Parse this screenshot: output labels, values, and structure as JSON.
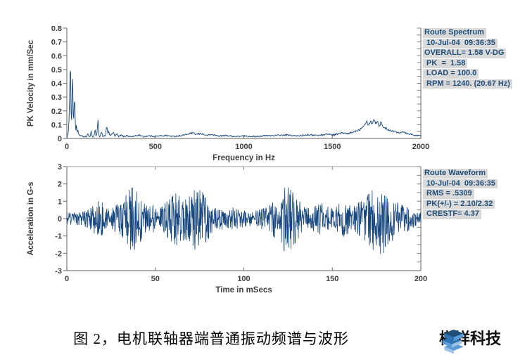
{
  "caption": {
    "text": "图 2，电机联轴器端普通振动频谱与波形"
  },
  "logo": {
    "text": "樽祥科技",
    "icon": "stacked-layers-icon",
    "colors": {
      "dark_blue": "#1f4e79",
      "mid_blue": "#2e75b6",
      "light_blue": "#5b9bd5",
      "pale_blue": "#9dc3e6"
    }
  },
  "colors": {
    "series_line": "#17477e",
    "axis": "#7f7f7f",
    "tick_text": "#3f3f3f",
    "legend_text": "#1f4e79",
    "legend_bg": "#d9d9d9",
    "background": "#ffffff"
  },
  "spectrum_legend": {
    "lines": [
      "Route Spectrum",
      " 10-Jul-04  09:36:35",
      "OVERALL= 1.58 V-DG",
      " PK  =  1.58",
      " LOAD = 100.0",
      " RPM = 1240. (20.67 Hz)"
    ]
  },
  "waveform_legend": {
    "lines": [
      "Route Waveform",
      " 10-Jul-04  09:36:35",
      " RMS = .5309",
      " PK(+/-) = 2.10/2.32",
      " CRESTF= 4.37"
    ]
  },
  "chart_data": [
    {
      "type": "line",
      "title": "Route Spectrum",
      "xlabel": "Frequency in Hz",
      "ylabel": "PK Velocity in mm/Sec",
      "xlim": [
        0,
        2000
      ],
      "ylim": [
        0,
        0.8
      ],
      "xticks": [
        0,
        500,
        1000,
        1500,
        2000
      ],
      "yticks": [
        0,
        0.1,
        0.2,
        0.3,
        0.4,
        0.5,
        0.6,
        0.7,
        0.8
      ],
      "grid": false,
      "legend_position": "outside-top-right",
      "points": [
        [
          0,
          0.01
        ],
        [
          6,
          0.03
        ],
        [
          10,
          0.06
        ],
        [
          14,
          0.22
        ],
        [
          18,
          0.5
        ],
        [
          20,
          0.55
        ],
        [
          22,
          0.38
        ],
        [
          25,
          0.08
        ],
        [
          28,
          0.18
        ],
        [
          31,
          0.46
        ],
        [
          33,
          0.44
        ],
        [
          35,
          0.2
        ],
        [
          38,
          0.1
        ],
        [
          41,
          0.26
        ],
        [
          44,
          0.3
        ],
        [
          47,
          0.14
        ],
        [
          50,
          0.06
        ],
        [
          54,
          0.09
        ],
        [
          58,
          0.04
        ],
        [
          62,
          0.06
        ],
        [
          66,
          0.03
        ],
        [
          72,
          0.025
        ],
        [
          80,
          0.02
        ],
        [
          90,
          0.015
        ],
        [
          100,
          0.012
        ],
        [
          110,
          0.01
        ],
        [
          118,
          0.035
        ],
        [
          124,
          0.012
        ],
        [
          132,
          0.02
        ],
        [
          138,
          0.055
        ],
        [
          142,
          0.015
        ],
        [
          150,
          0.012
        ],
        [
          156,
          0.03
        ],
        [
          160,
          0.08
        ],
        [
          163,
          0.02
        ],
        [
          170,
          0.03
        ],
        [
          176,
          0.145
        ],
        [
          181,
          0.02
        ],
        [
          188,
          0.012
        ],
        [
          196,
          0.05
        ],
        [
          202,
          0.012
        ],
        [
          210,
          0.02
        ],
        [
          218,
          0.015
        ],
        [
          226,
          0.1
        ],
        [
          231,
          0.03
        ],
        [
          237,
          0.06
        ],
        [
          243,
          0.015
        ],
        [
          252,
          0.03
        ],
        [
          262,
          0.045
        ],
        [
          272,
          0.015
        ],
        [
          282,
          0.035
        ],
        [
          292,
          0.012
        ],
        [
          305,
          0.025
        ],
        [
          320,
          0.015
        ],
        [
          340,
          0.02
        ],
        [
          360,
          0.012
        ],
        [
          385,
          0.018
        ],
        [
          410,
          0.025
        ],
        [
          435,
          0.012
        ],
        [
          460,
          0.02
        ],
        [
          490,
          0.015
        ],
        [
          520,
          0.018
        ],
        [
          560,
          0.022
        ],
        [
          600,
          0.015
        ],
        [
          640,
          0.02
        ],
        [
          680,
          0.03
        ],
        [
          710,
          0.04
        ],
        [
          730,
          0.03
        ],
        [
          760,
          0.035
        ],
        [
          790,
          0.022
        ],
        [
          820,
          0.028
        ],
        [
          860,
          0.018
        ],
        [
          900,
          0.022
        ],
        [
          950,
          0.014
        ],
        [
          1000,
          0.018
        ],
        [
          1060,
          0.014
        ],
        [
          1120,
          0.02
        ],
        [
          1180,
          0.022
        ],
        [
          1240,
          0.025
        ],
        [
          1300,
          0.018
        ],
        [
          1360,
          0.028
        ],
        [
          1420,
          0.022
        ],
        [
          1470,
          0.032
        ],
        [
          1510,
          0.026
        ],
        [
          1550,
          0.04
        ],
        [
          1590,
          0.034
        ],
        [
          1625,
          0.05
        ],
        [
          1655,
          0.065
        ],
        [
          1680,
          0.1
        ],
        [
          1695,
          0.125
        ],
        [
          1705,
          0.095
        ],
        [
          1715,
          0.13
        ],
        [
          1725,
          0.105
        ],
        [
          1735,
          0.145
        ],
        [
          1745,
          0.11
        ],
        [
          1755,
          0.125
        ],
        [
          1765,
          0.09
        ],
        [
          1775,
          0.115
        ],
        [
          1790,
          0.08
        ],
        [
          1805,
          0.07
        ],
        [
          1825,
          0.06
        ],
        [
          1850,
          0.05
        ],
        [
          1875,
          0.042
        ],
        [
          1900,
          0.05
        ],
        [
          1925,
          0.035
        ],
        [
          1950,
          0.03
        ],
        [
          1975,
          0.02
        ],
        [
          2000,
          0.022
        ]
      ]
    },
    {
      "type": "line",
      "title": "Route Waveform",
      "xlabel": "Time in mSecs",
      "ylabel": "Acceleration in G-s",
      "xlim": [
        0,
        200
      ],
      "ylim": [
        -3,
        3
      ],
      "xticks": [
        0,
        50,
        100,
        150,
        200
      ],
      "yticks": [
        -3,
        -2,
        -1,
        0,
        1,
        2,
        3
      ],
      "grid": false,
      "legend_position": "outside-top-right",
      "signal": "dense broadband vibration waveform; values below are the peak |amplitude| envelope [t_ms, g]",
      "envelope": [
        [
          0,
          0.35
        ],
        [
          5,
          0.3
        ],
        [
          9,
          0.4
        ],
        [
          13,
          0.55
        ],
        [
          16,
          0.85
        ],
        [
          19,
          1.1
        ],
        [
          22,
          0.6
        ],
        [
          25,
          0.55
        ],
        [
          28,
          0.9
        ],
        [
          31,
          1.25
        ],
        [
          34,
          1.55
        ],
        [
          37,
          1.8
        ],
        [
          40,
          1.5
        ],
        [
          43,
          0.95
        ],
        [
          46,
          0.65
        ],
        [
          49,
          0.8
        ],
        [
          52,
          0.6
        ],
        [
          55,
          0.85
        ],
        [
          58,
          1.1
        ],
        [
          61,
          1.45
        ],
        [
          64,
          1.4
        ],
        [
          67,
          1.1
        ],
        [
          70,
          1.45
        ],
        [
          73,
          1.75
        ],
        [
          76,
          1.6
        ],
        [
          79,
          1.25
        ],
        [
          82,
          0.75
        ],
        [
          85,
          0.55
        ],
        [
          88,
          0.6
        ],
        [
          91,
          0.5
        ],
        [
          94,
          0.65
        ],
        [
          97,
          0.5
        ],
        [
          100,
          0.45
        ],
        [
          104,
          0.4
        ],
        [
          108,
          0.5
        ],
        [
          112,
          0.6
        ],
        [
          115,
          0.8
        ],
        [
          118,
          1.1
        ],
        [
          121,
          1.5
        ],
        [
          124,
          1.9
        ],
        [
          127,
          1.6
        ],
        [
          130,
          1.15
        ],
        [
          133,
          0.85
        ],
        [
          136,
          0.6
        ],
        [
          140,
          0.7
        ],
        [
          144,
          0.9
        ],
        [
          147,
          0.7
        ],
        [
          150,
          0.6
        ],
        [
          153,
          0.8
        ],
        [
          156,
          1.0
        ],
        [
          159,
          0.8
        ],
        [
          162,
          0.7
        ],
        [
          165,
          0.9
        ],
        [
          168,
          1.15
        ],
        [
          171,
          1.45
        ],
        [
          174,
          1.8
        ],
        [
          177,
          2.15
        ],
        [
          180,
          1.7
        ],
        [
          183,
          1.3
        ],
        [
          186,
          1.0
        ],
        [
          189,
          0.8
        ],
        [
          192,
          0.7
        ],
        [
          195,
          0.55
        ],
        [
          198,
          0.45
        ],
        [
          200,
          0.4
        ]
      ]
    }
  ]
}
